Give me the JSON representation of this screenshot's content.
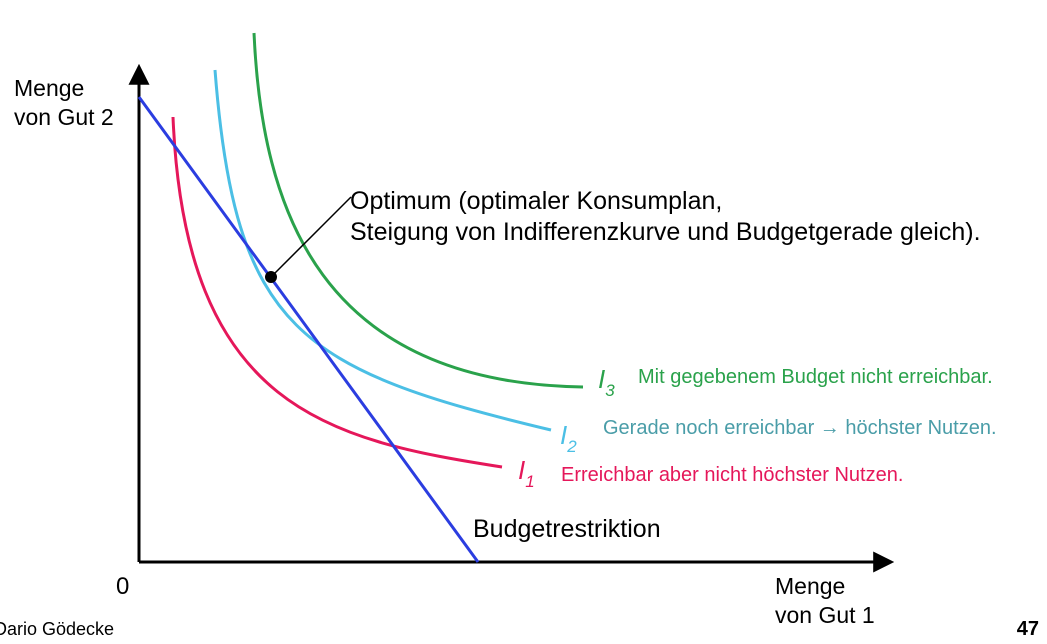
{
  "axes": {
    "y_label_line1": "Menge",
    "y_label_line2": "von Gut 2",
    "x_label_line1": "Menge",
    "x_label_line2": "von Gut 1",
    "origin": "0"
  },
  "optimum_annotation": {
    "line1": "Optimum (optimaler Konsumplan,",
    "line2": "Steigung von Indifferenzkurve und Budgetgerade gleich)."
  },
  "budget_label": "Budgetrestriktion",
  "curves": [
    {
      "letter": "I",
      "index": "3",
      "description": "Mit gegebenem Budget nicht erreichbar.",
      "color": "#2aa24b"
    },
    {
      "letter": "I",
      "index": "2",
      "description": "Gerade noch erreichbar → höchster Nutzen.",
      "color": "#4bbfe5"
    },
    {
      "letter": "I",
      "index": "1",
      "description": "Erreichbar aber nicht höchster Nutzen.",
      "color": "#e5175a"
    }
  ],
  "colors": {
    "axis": "#000000",
    "budget_line": "#2b3de0",
    "optimum_point": "#000000"
  },
  "footer": {
    "author": "Dario Gödecke",
    "page": "47"
  }
}
